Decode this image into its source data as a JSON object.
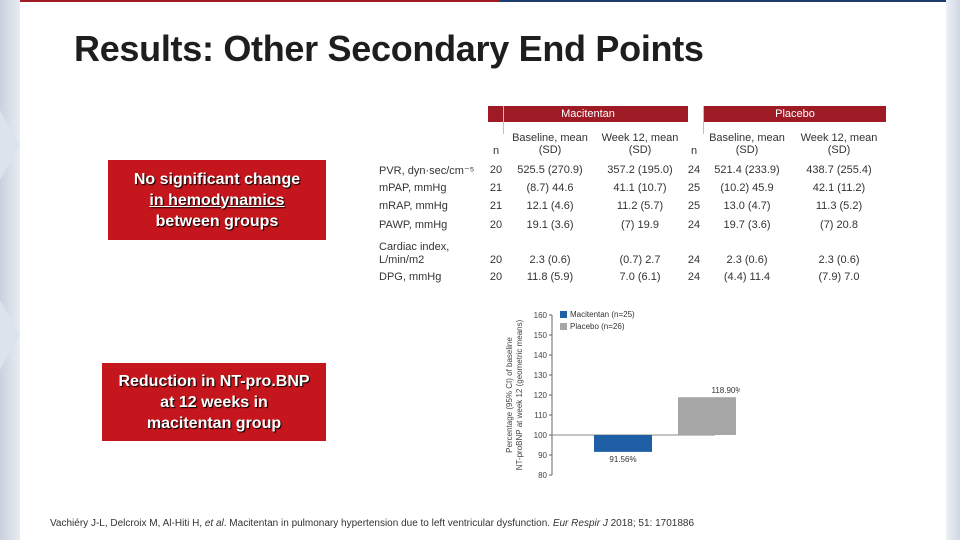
{
  "title": "Results: Other Secondary End Points",
  "callouts": {
    "hemo_line1": "No significant change",
    "hemo_line2": "in hemodynamics",
    "hemo_line3": "between groups",
    "bnp_line1": "Reduction in NT-pro.BNP",
    "bnp_line2": "at 12 weeks in",
    "bnp_line3": "macitentan group"
  },
  "table": {
    "group_macitentan": "Macitentan",
    "group_placebo": "Placebo",
    "col_n": "n",
    "col_baseline": [
      "Baseline, mean",
      "(SD)"
    ],
    "col_week12": [
      "Week 12, mean",
      "(SD)"
    ],
    "rows": [
      {
        "label": "PVR, dyn·sec/cm⁻⁵",
        "label2": "",
        "m_n": "20",
        "m_base": "525.5 (270.9)",
        "m_w12": "357.2 (195.0)",
        "p_n": "24",
        "p_base": "521.4 (233.9)",
        "p_w12": "438.7 (255.4)"
      },
      {
        "label": "mPAP, mmHg",
        "label2": "",
        "m_n": "21",
        "m_base": "(8.7) 44.6",
        "m_w12": "41.1 (10.7)",
        "p_n": "25",
        "p_base": "(10.2) 45.9",
        "p_w12": "42.1 (11.2)"
      },
      {
        "label": "mRAP, mmHg",
        "label2": "",
        "m_n": "21",
        "m_base": "12.1 (4.6)",
        "m_w12": "11.2 (5.7)",
        "p_n": "25",
        "p_base": "13.0 (4.7)",
        "p_w12": "11.3 (5.2)"
      },
      {
        "label": "PAWP, mmHg",
        "label2": "",
        "m_n": "20",
        "m_base": "19.1 (3.6)",
        "m_w12": "(7) 19.9",
        "p_n": "24",
        "p_base": "19.7 (3.6)",
        "p_w12": "(7) 20.8"
      },
      {
        "label": "Cardiac index,",
        "label2": "L/min/m2",
        "m_n": "20",
        "m_base": "2.3 (0.6)",
        "m_w12": "(0.7) 2.7",
        "p_n": "24",
        "p_base": "2.3 (0.6)",
        "p_w12": "2.3 (0.6)"
      },
      {
        "label": "DPG, mmHg",
        "label2": "",
        "m_n": "20",
        "m_base": "11.8 (5.9)",
        "m_w12": "7.0 (6.1)",
        "p_n": "24",
        "p_base": "(4.4) 11.4",
        "p_w12": "(7.9) 7.0"
      }
    ]
  },
  "chart_data": {
    "type": "bar",
    "ylabel_line1": "Percentage (95% CI) of baseline",
    "ylabel_line2": "NT-proBNP at week 12 (geometric means)",
    "ylim": [
      80,
      160
    ],
    "yticks": [
      "80",
      "90",
      "100",
      "110",
      "120",
      "130",
      "140",
      "150",
      "160"
    ],
    "baseline": 100,
    "series": [
      {
        "name": "Macitentan (n=25)",
        "value": 91.56,
        "label": "91.56%",
        "color": "#1f5fa6"
      },
      {
        "name": "Placebo (n=26)",
        "value": 118.9,
        "label": "118.90%",
        "color": "#a6a6a6"
      }
    ]
  },
  "footer": {
    "text": "Vachiéry J-L, Delcroix M, Al-Hiti H, ",
    "etal": "et al",
    "text2": ". Macitentan in pulmonary hypertension due to left ventricular dysfunction. ",
    "journal": "Eur Respir J",
    "text3": " 2018; 51: 1701886"
  },
  "colors": {
    "accent_red": "#c4161c",
    "header_red": "#9e1b26",
    "navy": "#1f3c6e"
  }
}
